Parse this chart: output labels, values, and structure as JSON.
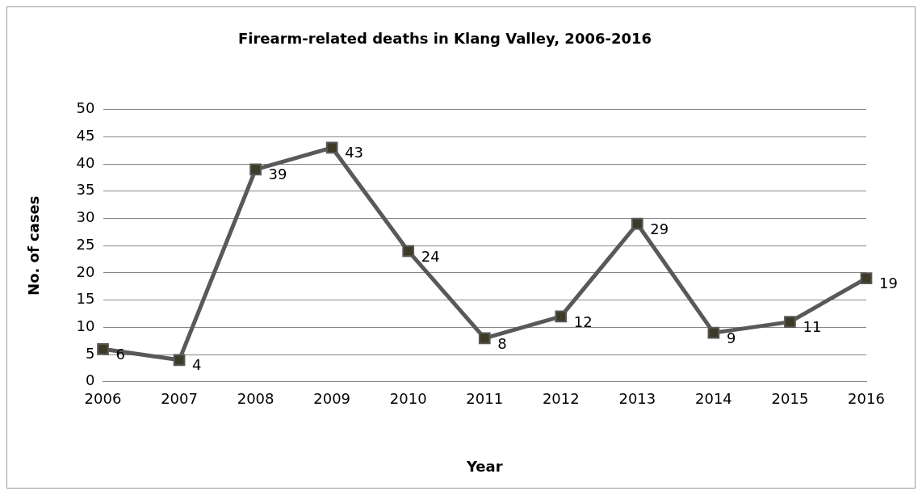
{
  "chart_data": {
    "type": "line",
    "title": "Firearm-related deaths in Klang Valley, 2006-2016",
    "xlabel": "Year",
    "ylabel": "No. of cases",
    "categories": [
      "2006",
      "2007",
      "2008",
      "2009",
      "2010",
      "2011",
      "2012",
      "2013",
      "2014",
      "2015",
      "2016"
    ],
    "series": [
      {
        "color": "#595959",
        "values": [
          6,
          4,
          39,
          43,
          24,
          8,
          12,
          29,
          9,
          11,
          19
        ]
      }
    ],
    "ylim": [
      0,
      50
    ],
    "yticks": [
      0,
      5,
      10,
      15,
      20,
      25,
      30,
      35,
      40,
      45,
      50
    ],
    "grid": "y",
    "legend": false,
    "marker": "square",
    "line_style": "solid",
    "data_labels": true
  }
}
